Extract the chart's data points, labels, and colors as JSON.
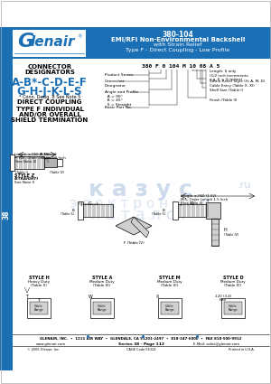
{
  "title_number": "380-104",
  "title_line1": "EMI/RFI Non-Environmental Backshell",
  "title_line2": "with Strain Relief",
  "title_line3": "Type F - Direct Coupling - Low Profile",
  "header_bg": "#1b6fb5",
  "header_text_color": "#ffffff",
  "sidebar_bg": "#1b6fb5",
  "sidebar_text": "38",
  "connector_designators_line1": "CONNECTOR",
  "connector_designators_line2": "DESIGNATORS",
  "designators_line1": "A-B*-C-D-E-F",
  "designators_line2": "G-H-J-K-L-S",
  "designators_note": "* Conn. Desig. B See Note 5",
  "direct_coupling": "DIRECT COUPLING",
  "type_f_line1": "TYPE F INDIVIDUAL",
  "type_f_line2": "AND/OR OVERALL",
  "type_f_line3": "SHIELD TERMINATION",
  "part_number_example": "380 F 0 104 M 10 08 A 5",
  "footer_company": "GLENAIR, INC.  •  1211 AIR WAY  •  GLENDALE, CA 91201-2497  •  818-247-6000  •  FAX 818-500-9912",
  "footer_web": "www.glenair.com",
  "footer_series": "Series 38 - Page 112",
  "footer_email": "E-Mail: sales@glenair.com",
  "footer_copyright": "© 2005 Glenair, Inc.",
  "footer_cage": "CAGE Code 06324",
  "footer_printed": "Printed in U.S.A.",
  "main_bg": "#ffffff",
  "body_text_color": "#000000",
  "blue_text_color": "#1b6fb5",
  "watermark_color": "#b8cce4",
  "gray_connector": "#d0d0d0",
  "dark_gray": "#888888"
}
